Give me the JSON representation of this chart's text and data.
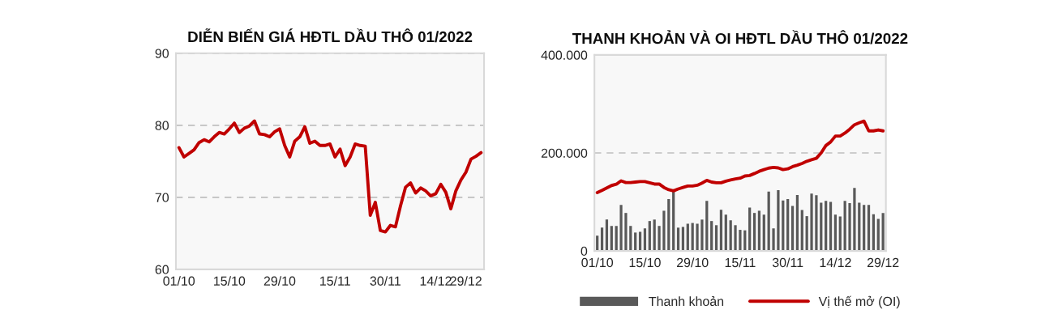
{
  "chart_data": [
    {
      "type": "line",
      "title": "DIỄN BIẾN GIÁ HĐTL DẦU THÔ 01/2022",
      "categories": [
        "01/10",
        null,
        null,
        null,
        null,
        null,
        null,
        null,
        null,
        null,
        "15/10",
        null,
        null,
        null,
        null,
        null,
        null,
        null,
        null,
        null,
        "29/10",
        null,
        null,
        null,
        null,
        null,
        null,
        null,
        null,
        null,
        null,
        "15/11",
        null,
        null,
        null,
        null,
        null,
        null,
        null,
        null,
        null,
        "30/11",
        null,
        null,
        null,
        null,
        null,
        null,
        null,
        null,
        null,
        "14/12",
        null,
        null,
        null,
        null,
        null,
        "29/12",
        null,
        null,
        null
      ],
      "values": [
        76.9,
        75.6,
        76.1,
        76.6,
        77.6,
        78.0,
        77.7,
        78.4,
        79.0,
        78.8,
        79.5,
        80.3,
        79.0,
        79.6,
        79.9,
        80.6,
        78.8,
        78.7,
        78.4,
        79.1,
        79.5,
        77.2,
        75.6,
        77.8,
        78.4,
        79.8,
        77.5,
        77.8,
        77.2,
        77.2,
        77.4,
        75.6,
        76.7,
        74.4,
        75.6,
        77.4,
        77.2,
        77.1,
        67.5,
        69.3,
        65.4,
        65.2,
        66.1,
        65.9,
        68.8,
        71.4,
        72.0,
        70.6,
        71.3,
        70.9,
        70.2,
        70.5,
        71.8,
        70.7,
        68.4,
        70.9,
        72.4,
        73.5,
        75.3,
        75.7,
        76.2
      ],
      "color": "#c00000",
      "ylim": [
        60,
        90
      ],
      "yticks": [
        60,
        70,
        80,
        90
      ],
      "grid": "y"
    },
    {
      "type": "bar",
      "title": "THANH KHOẢN VÀ OI HĐTL DẦU THÔ 01/2022",
      "categories": [
        "01/10",
        null,
        null,
        null,
        null,
        null,
        null,
        null,
        null,
        null,
        "15/10",
        null,
        null,
        null,
        null,
        null,
        null,
        null,
        null,
        null,
        "29/10",
        null,
        null,
        null,
        null,
        null,
        null,
        null,
        null,
        null,
        "15/11",
        null,
        null,
        null,
        null,
        null,
        null,
        null,
        null,
        null,
        "30/11",
        null,
        null,
        null,
        null,
        null,
        null,
        null,
        null,
        null,
        "14/12",
        null,
        null,
        null,
        null,
        null,
        null,
        null,
        null,
        null,
        "29/12"
      ],
      "series": [
        {
          "name": "Thanh khoản",
          "type": "bar",
          "color": "#595959",
          "values": [
            31000,
            47500,
            64000,
            51000,
            51000,
            94000,
            77500,
            51000,
            37500,
            39000,
            46000,
            61000,
            64000,
            51000,
            82000,
            106000,
            121000,
            47500,
            49000,
            55500,
            57000,
            55500,
            64000,
            102000,
            61000,
            52500,
            84000,
            74000,
            62500,
            52500,
            43000,
            42000,
            88500,
            77500,
            82000,
            74000,
            121000,
            46000,
            124000,
            103000,
            106000,
            92000,
            114000,
            83500,
            71000,
            117000,
            113500,
            98500,
            102000,
            100000,
            74000,
            70500,
            102000,
            97500,
            128500,
            98500,
            94000,
            94000,
            75000,
            65500,
            77500
          ]
        },
        {
          "name": "Vị thế mở (OI)",
          "type": "line",
          "color": "#c00000",
          "values": [
            119000,
            123500,
            128500,
            133500,
            136000,
            143000,
            139500,
            139500,
            140500,
            141500,
            141500,
            139000,
            136500,
            136500,
            129500,
            125000,
            122500,
            126500,
            129500,
            132500,
            132500,
            134000,
            138500,
            144000,
            140500,
            139000,
            139000,
            142500,
            145000,
            147000,
            148500,
            153000,
            154000,
            158000,
            162500,
            166000,
            169000,
            170500,
            169500,
            166000,
            167500,
            172000,
            175000,
            178500,
            183000,
            186000,
            189000,
            200000,
            215000,
            222500,
            234500,
            234500,
            240500,
            248500,
            257500,
            261500,
            265000,
            245000,
            245000,
            247000,
            245000
          ]
        }
      ],
      "ylim": [
        0,
        400000
      ],
      "yticks": [
        0,
        {
          "value": 200000,
          "label": "200.000"
        },
        {
          "value": 400000,
          "label": "400.000"
        }
      ],
      "grid": "y",
      "legend": "bottom"
    }
  ]
}
